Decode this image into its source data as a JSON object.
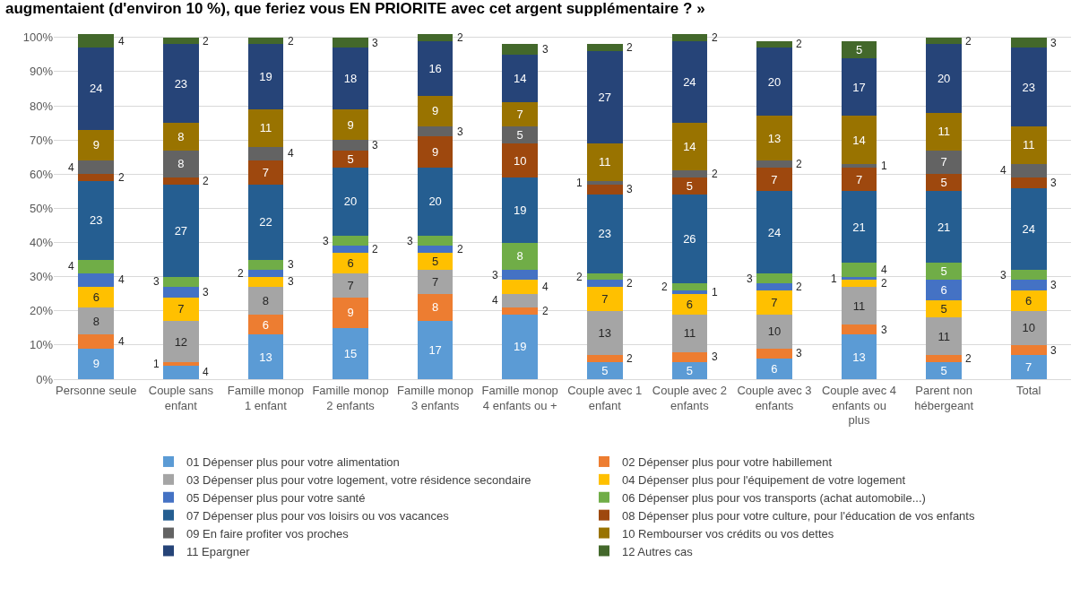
{
  "chart_data": {
    "type": "bar",
    "stacked": true,
    "title": "augmentaient (d'environ 10 %), que feriez vous EN PRIORITE avec cet argent supplémentaire ? »",
    "categories": [
      "Personne seule",
      "Couple sans enfant",
      "Famille monop 1 enfant",
      "Famille monop 2 enfants",
      "Famille monop 3 enfants",
      "Famille monop 4 enfants ou +",
      "Couple avec 1 enfant",
      "Couple avec 2 enfants",
      "Couple avec 3 enfants",
      "Couple avec 4 enfants ou plus",
      "Parent non hébergeant",
      "Total"
    ],
    "series": [
      {
        "name": "01 Dépenser plus pour votre alimentation",
        "color": "#5b9bd5",
        "values": [
          9,
          4,
          13,
          15,
          17,
          19,
          5,
          5,
          6,
          13,
          5,
          7
        ]
      },
      {
        "name": "02 Dépenser plus pour votre habillement",
        "color": "#ed7d31",
        "values": [
          4,
          1,
          6,
          9,
          8,
          2,
          2,
          3,
          3,
          3,
          2,
          3
        ]
      },
      {
        "name": "03 Dépenser plus pour votre logement, votre résidence secondaire",
        "color": "#a5a5a5",
        "values": [
          8,
          12,
          8,
          7,
          7,
          4,
          13,
          11,
          10,
          11,
          11,
          10
        ]
      },
      {
        "name": "04 Dépenser plus pour l'équipement de votre logement",
        "color": "#ffc000",
        "values": [
          6,
          7,
          3,
          6,
          5,
          4,
          7,
          6,
          7,
          2,
          5,
          6
        ]
      },
      {
        "name": "05 Dépenser plus pour votre santé",
        "color": "#4472c4",
        "values": [
          4,
          3,
          2,
          2,
          2,
          3,
          2,
          1,
          2,
          1,
          6,
          3
        ]
      },
      {
        "name": "06 Dépenser plus pour vos transports (achat automobile...)",
        "color": "#70ad47",
        "values": [
          4,
          3,
          3,
          3,
          3,
          8,
          2,
          2,
          3,
          4,
          5,
          3
        ]
      },
      {
        "name": "07 Dépenser plus pour vos loisirs ou vos vacances",
        "color": "#255e91",
        "values": [
          23,
          27,
          22,
          20,
          20,
          19,
          23,
          26,
          24,
          21,
          21,
          24
        ]
      },
      {
        "name": "08 Dépenser plus pour votre culture, pour l'éducation de vos enfants",
        "color": "#9e480e",
        "values": [
          2,
          2,
          7,
          5,
          9,
          10,
          3,
          5,
          7,
          7,
          5,
          3
        ]
      },
      {
        "name": "09 En faire profiter vos proches",
        "color": "#636363",
        "values": [
          4,
          8,
          4,
          3,
          3,
          5,
          1,
          2,
          2,
          1,
          7,
          4
        ]
      },
      {
        "name": "10 Rembourser vos crédits ou vos dettes",
        "color": "#997300",
        "values": [
          9,
          8,
          11,
          9,
          9,
          7,
          11,
          14,
          13,
          14,
          11,
          11
        ]
      },
      {
        "name": "11 Epargner",
        "color": "#264478",
        "values": [
          24,
          23,
          19,
          18,
          16,
          14,
          27,
          24,
          20,
          17,
          20,
          23
        ]
      },
      {
        "name": "12 Autres cas",
        "color": "#43682b",
        "values": [
          4,
          2,
          2,
          3,
          2,
          3,
          2,
          2,
          2,
          5,
          2,
          3
        ]
      }
    ],
    "ylim": [
      0,
      101
    ],
    "yticks": [
      {
        "value": 0,
        "label": "0%"
      },
      {
        "value": 10,
        "label": "10%"
      },
      {
        "value": 20,
        "label": "20%"
      },
      {
        "value": 30,
        "label": "30%"
      },
      {
        "value": 40,
        "label": "40%"
      },
      {
        "value": 50,
        "label": "50%"
      },
      {
        "value": 60,
        "label": "60%"
      },
      {
        "value": 70,
        "label": "70%"
      },
      {
        "value": 80,
        "label": "80%"
      },
      {
        "value": 90,
        "label": "90%"
      },
      {
        "value": 100,
        "label": "100%"
      }
    ],
    "grid": "y",
    "legend": "bottom",
    "data_labels": true
  }
}
